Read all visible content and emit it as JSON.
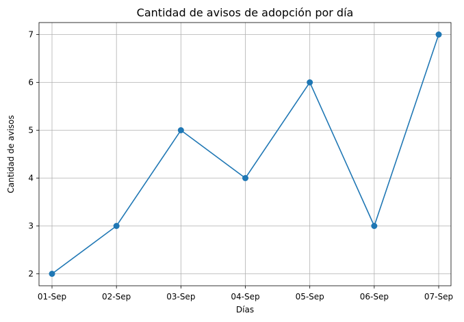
{
  "chart_data": {
    "type": "line",
    "title": "Cantidad de avisos de adopción por día",
    "xlabel": "Días",
    "ylabel": "Cantidad de avisos",
    "categories": [
      "01-Sep",
      "02-Sep",
      "03-Sep",
      "04-Sep",
      "05-Sep",
      "06-Sep",
      "07-Sep"
    ],
    "series": [
      {
        "values": [
          2,
          3,
          5,
          4,
          6,
          3,
          7
        ],
        "color": "#1f77b4",
        "marker": "circle"
      }
    ],
    "yticks": [
      2,
      3,
      4,
      5,
      6,
      7
    ],
    "ylim": [
      1.75,
      7.25
    ],
    "grid": true,
    "legend": "none"
  }
}
